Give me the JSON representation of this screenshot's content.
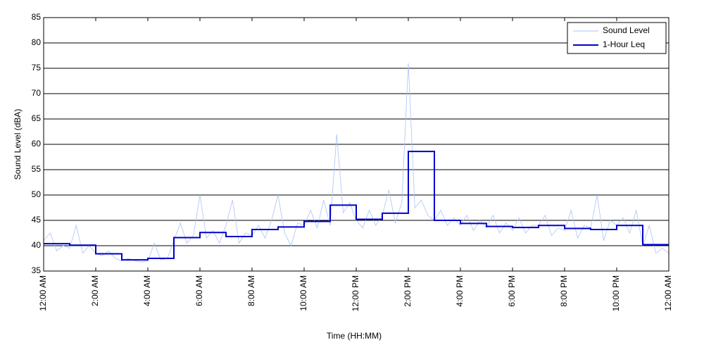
{
  "chart_data": {
    "type": "line",
    "xlabel": "Time (HH:MM)",
    "ylabel": "Sound Level (dBA)",
    "xlim": [
      0,
      24
    ],
    "ylim": [
      35,
      85
    ],
    "yticks": [
      35,
      40,
      45,
      50,
      55,
      60,
      65,
      70,
      75,
      80,
      85
    ],
    "xticks": [
      {
        "value": 0,
        "label": "12:00 AM"
      },
      {
        "value": 2,
        "label": "2:00 AM"
      },
      {
        "value": 4,
        "label": "4:00 AM"
      },
      {
        "value": 6,
        "label": "6:00 AM"
      },
      {
        "value": 8,
        "label": "8:00 AM"
      },
      {
        "value": 10,
        "label": "10:00 AM"
      },
      {
        "value": 12,
        "label": "12:00 PM"
      },
      {
        "value": 14,
        "label": "2:00 PM"
      },
      {
        "value": 16,
        "label": "4:00 PM"
      },
      {
        "value": 18,
        "label": "6:00 PM"
      },
      {
        "value": 20,
        "label": "8:00 PM"
      },
      {
        "value": 22,
        "label": "10:00 PM"
      },
      {
        "value": 24,
        "label": "12:00 AM"
      }
    ],
    "grid": true,
    "legend": "upper right",
    "series": [
      {
        "name": "Sound Level",
        "color": "#a9c4f5",
        "drawstyle": "line",
        "x": [
          0,
          0.25,
          0.5,
          0.75,
          1,
          1.25,
          1.5,
          1.75,
          2,
          2.25,
          2.5,
          2.75,
          3,
          3.25,
          3.5,
          3.75,
          4,
          4.25,
          4.5,
          4.75,
          5,
          5.25,
          5.5,
          5.75,
          6,
          6.25,
          6.5,
          6.75,
          7,
          7.25,
          7.5,
          7.75,
          8,
          8.25,
          8.5,
          8.75,
          9,
          9.25,
          9.5,
          9.75,
          10,
          10.25,
          10.5,
          10.75,
          11,
          11.25,
          11.5,
          11.75,
          12,
          12.25,
          12.5,
          12.75,
          13,
          13.25,
          13.5,
          13.75,
          14,
          14.25,
          14.5,
          14.75,
          15,
          15.25,
          15.5,
          15.75,
          16,
          16.25,
          16.5,
          16.75,
          17,
          17.25,
          17.5,
          17.75,
          18,
          18.25,
          18.5,
          18.75,
          19,
          19.25,
          19.5,
          19.75,
          20,
          20.25,
          20.5,
          20.75,
          21,
          21.25,
          21.5,
          21.75,
          22,
          22.25,
          22.5,
          22.75,
          23,
          23.25,
          23.5,
          23.75,
          24
        ],
        "values": [
          41,
          42.5,
          39,
          40,
          39.5,
          44,
          38.5,
          40,
          38.5,
          38,
          39,
          37.5,
          37,
          37.5,
          37,
          36.8,
          37,
          40.5,
          37.2,
          37.5,
          41,
          44.5,
          40.5,
          42,
          50,
          41.5,
          43,
          40.5,
          44,
          49,
          40.5,
          42.5,
          42,
          44,
          41.5,
          45,
          50,
          42.5,
          40,
          44.5,
          44,
          47,
          43.5,
          49,
          44,
          62,
          46.5,
          48.5,
          45,
          43.5,
          47,
          44,
          46,
          51,
          44.5,
          48.5,
          76,
          47.5,
          49,
          46,
          45,
          47,
          44,
          45.5,
          44,
          46,
          43,
          45,
          43.5,
          46,
          42.5,
          44.5,
          43,
          45.5,
          42.5,
          44,
          44,
          46,
          42,
          43.5,
          43,
          47,
          41.5,
          44,
          43.5,
          50,
          41,
          45,
          44,
          45.5,
          42.5,
          47,
          40,
          44,
          38.5,
          39.5,
          38.5
        ]
      },
      {
        "name": "1-Hour Leq",
        "color": "#0000cc",
        "drawstyle": "steps-post",
        "x": [
          0,
          1,
          2,
          3,
          4,
          5,
          6,
          7,
          8,
          9,
          10,
          11,
          12,
          13,
          14,
          15,
          16,
          17,
          18,
          19,
          20,
          21,
          22,
          23
        ],
        "values": [
          40.4,
          40.1,
          38.4,
          37.2,
          37.5,
          41.6,
          42.6,
          41.8,
          43.2,
          43.7,
          44.8,
          48.0,
          45.2,
          46.4,
          58.6,
          45.0,
          44.4,
          43.8,
          43.6,
          44.0,
          43.4,
          43.2,
          44.0,
          40.2
        ]
      }
    ]
  }
}
